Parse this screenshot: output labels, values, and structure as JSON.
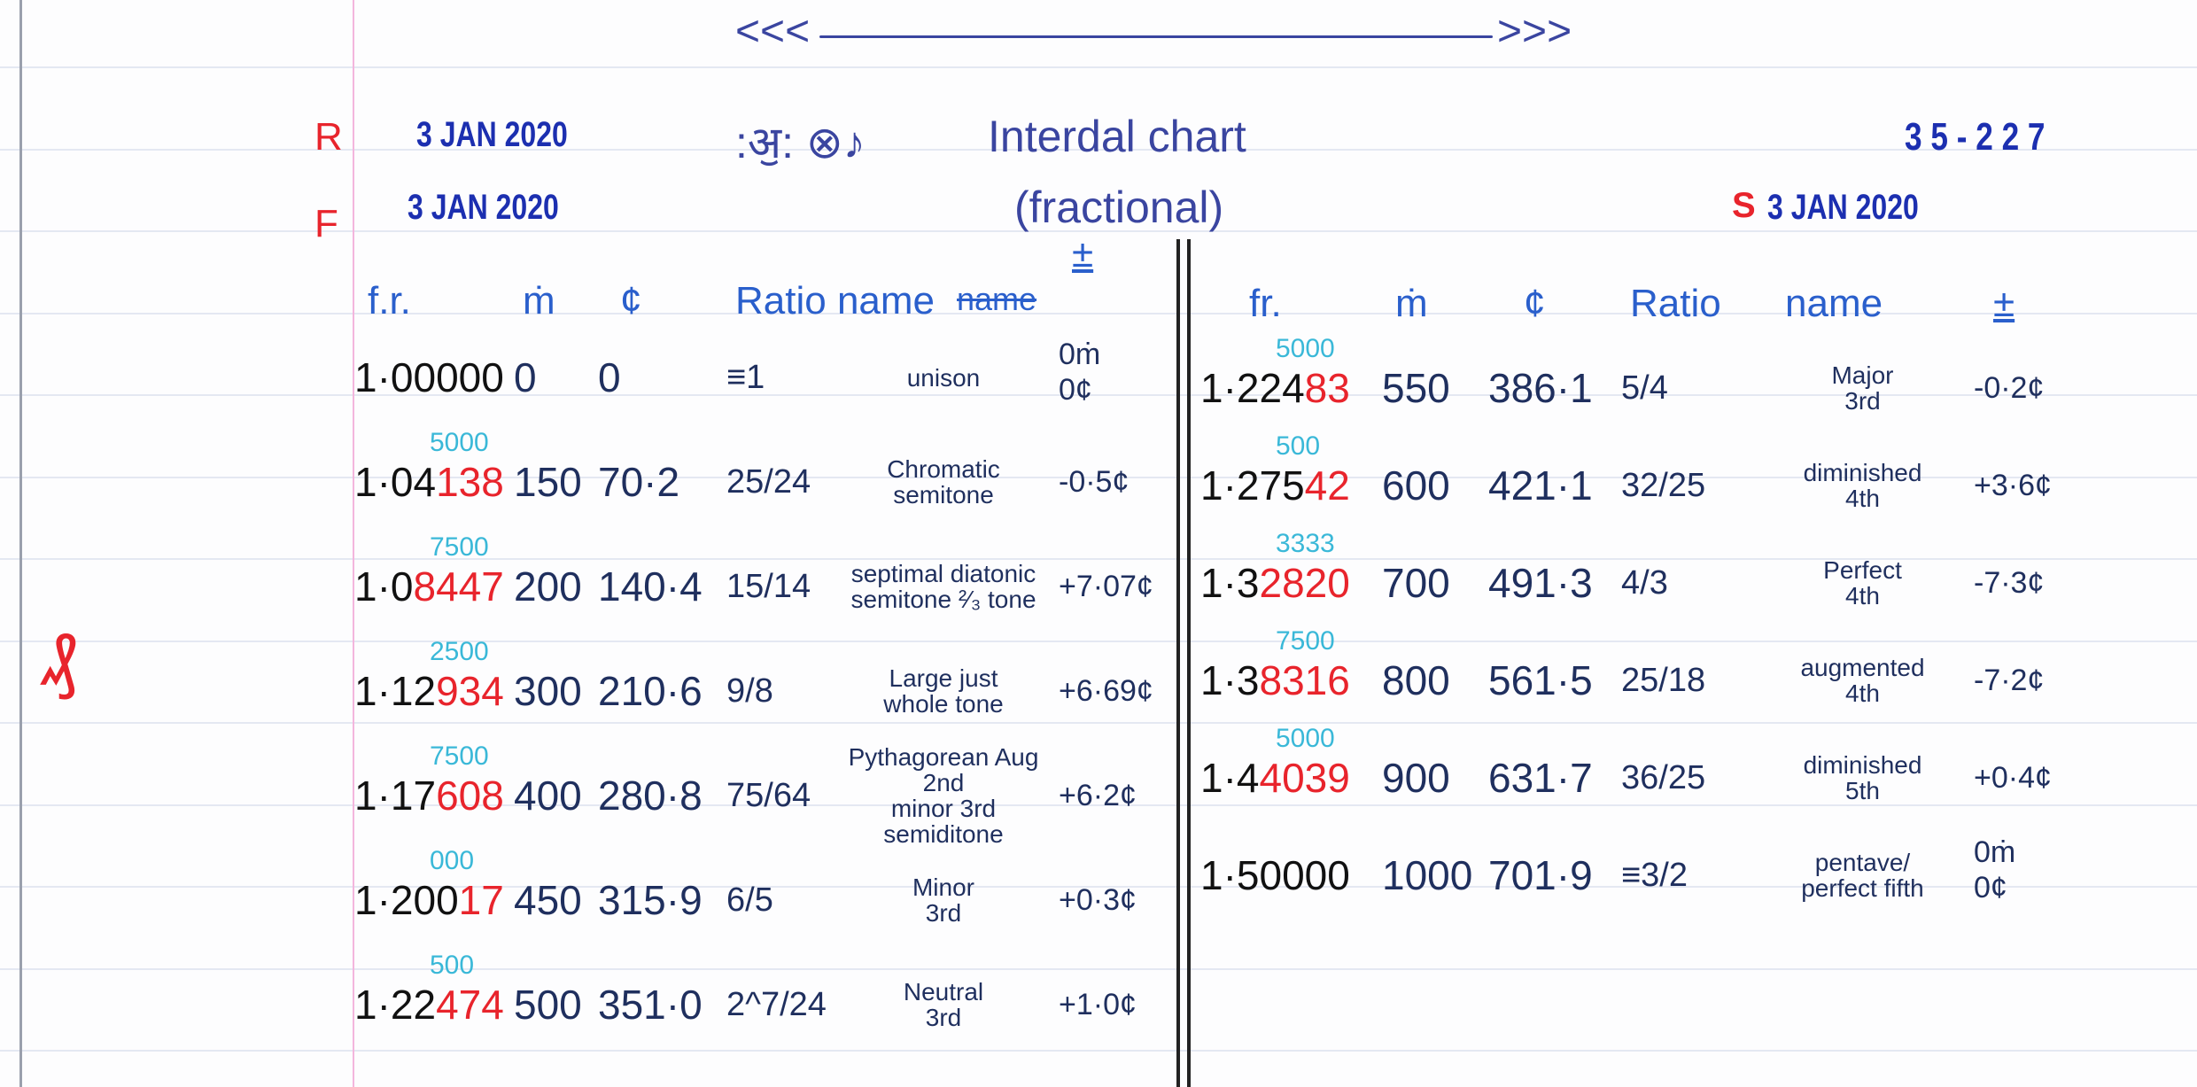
{
  "header": {
    "arrow_left": "<<<",
    "arrow_right": ">>>",
    "stamp_r_label": "R",
    "stamp_r_date": "3 JAN 2020",
    "stamp_f_label": "F",
    "stamp_f_date": "3 JAN 2020",
    "title_symbols": ":ॶ: ⊗♪",
    "title": "Interdal chart",
    "subtitle": "(fractional)",
    "ref_number": "3 5 - 2 2 7",
    "stamp_s_label": "S",
    "stamp_s_date": "3 JAN 2020",
    "margin_mark": "₰"
  },
  "left_table": {
    "columns": {
      "fr": "f.r.",
      "m": "ṁ",
      "cents": "¢",
      "ratio_name": "Ratio name",
      "struck": "name",
      "pm": "±"
    },
    "rows": [
      {
        "fr_black": "1·00000",
        "fr_red": "",
        "fr_annot": "",
        "m": "0",
        "cents": "0",
        "ratio": "≡1",
        "name": "unison",
        "delta": "0ṁ\n0¢"
      },
      {
        "fr_black": "1·04",
        "fr_red": "138",
        "fr_annot": "5000",
        "m": "150",
        "cents": "70·2",
        "ratio": "25/24",
        "name": "Chromatic\nsemitone",
        "delta": "-0·5¢"
      },
      {
        "fr_black": "1·0",
        "fr_red": "8447",
        "fr_annot": "7500",
        "m": "200",
        "cents": "140·4",
        "ratio": "15/14",
        "name": "septimal diatonic semitone ²⁄₃ tone",
        "delta": "+7·07¢"
      },
      {
        "fr_black": "1·12",
        "fr_red": "934",
        "fr_annot": "2500",
        "m": "300",
        "cents": "210·6",
        "ratio": "9/8",
        "name": "Large just\nwhole tone",
        "delta": "+6·69¢"
      },
      {
        "fr_black": "1·17",
        "fr_red": "608",
        "fr_annot": "7500",
        "m": "400",
        "cents": "280·8",
        "ratio": "75/64",
        "name": "Pythagorean Aug 2nd\nminor 3rd\nsemiditone",
        "delta": "+6·2¢"
      },
      {
        "fr_black": "1·200",
        "fr_red": "17",
        "fr_annot": "000",
        "m": "450",
        "cents": "315·9",
        "ratio": "6/5",
        "name": "Minor\n3rd",
        "delta": "+0·3¢"
      },
      {
        "fr_black": "1·22",
        "fr_red": "474",
        "fr_annot": "500",
        "m": "500",
        "cents": "351·0",
        "ratio": "2^7/24",
        "name": "Neutral\n3rd",
        "delta": "+1·0¢"
      }
    ]
  },
  "right_table": {
    "columns": {
      "fr": "fr.",
      "m": "ṁ",
      "cents": "¢",
      "ratio": "Ratio",
      "name": "name",
      "pm": "±"
    },
    "rows": [
      {
        "fr_black": "1·224",
        "fr_red": "83",
        "fr_annot": "5000",
        "m": "550",
        "cents": "386·1",
        "ratio": "5/4",
        "name": "Major\n3rd",
        "delta": "-0·2¢"
      },
      {
        "fr_black": "1·275",
        "fr_red": "42",
        "fr_annot": "500",
        "m": "600",
        "cents": "421·1",
        "ratio": "32/25",
        "name": "diminished\n4th",
        "delta": "+3·6¢"
      },
      {
        "fr_black": "1·3",
        "fr_red": "2820",
        "fr_annot": "3333",
        "m": "700",
        "cents": "491·3",
        "ratio": "4/3",
        "name": "Perfect\n4th",
        "delta": "-7·3¢"
      },
      {
        "fr_black": "1·3",
        "fr_red": "8316",
        "fr_annot": "7500",
        "m": "800",
        "cents": "561·5",
        "ratio": "25/18",
        "name": "augmented\n4th",
        "delta": "-7·2¢"
      },
      {
        "fr_black": "1·4",
        "fr_red": "4039",
        "fr_annot": "5000",
        "m": "900",
        "cents": "631·7",
        "ratio": "36/25",
        "name": "diminished\n5th",
        "delta": "+0·4¢"
      },
      {
        "fr_black": "1·50000",
        "fr_red": "",
        "fr_annot": "",
        "m": "1000",
        "cents": "701·9",
        "ratio": "≡3/2",
        "name": "pentave/\nperfect fifth",
        "delta": "0ṁ\n0¢"
      }
    ]
  },
  "colors": {
    "ink": "#1f2f5e",
    "stamp_blue": "#1c2fb0",
    "red": "#e8242c",
    "cyan": "#3ab8d8",
    "header_blue": "#2a5fcc",
    "margin_pink": "#f3b6dd"
  }
}
